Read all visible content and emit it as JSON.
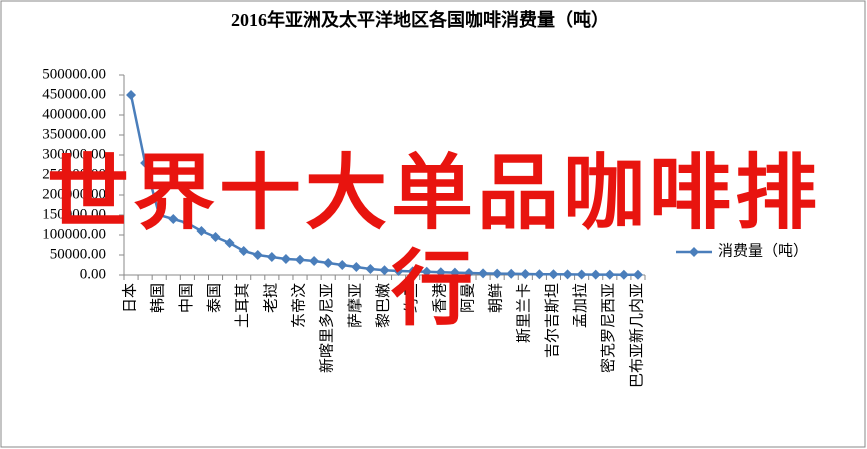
{
  "chart_data": {
    "type": "line",
    "title": "2016年亚洲及太平洋地区各国咖啡消费量（吨）",
    "annotation": "世界十大单品咖啡排行",
    "categories": [
      "日本",
      null,
      "韩国",
      null,
      "中国",
      null,
      "泰国",
      null,
      "土耳其",
      null,
      "老挝",
      null,
      "东帝汶",
      null,
      "新喀里多尼亚",
      null,
      "萨摩亚",
      null,
      "黎巴嫩",
      null,
      "约旦",
      null,
      "香港",
      null,
      "阿曼",
      null,
      "朝鲜",
      null,
      "斯里兰卡",
      null,
      "吉尔吉斯坦",
      null,
      "孟加拉",
      null,
      "密克罗尼西亚",
      null,
      "巴布亚新几内亚"
    ],
    "series": [
      {
        "name": "消费量（吨）",
        "color": "#4a7ebb",
        "values": [
          450000,
          280000,
          150000,
          140000,
          130000,
          110000,
          95000,
          80000,
          60000,
          50000,
          45000,
          40000,
          38000,
          35000,
          30000,
          25000,
          20000,
          15000,
          12000,
          10000,
          9000,
          8000,
          7000,
          6000,
          5000,
          4000,
          3500,
          3000,
          2500,
          2000,
          1800,
          1500,
          1200,
          1000,
          800,
          600,
          500
        ]
      }
    ],
    "ylim": [
      0,
      500000
    ],
    "yticks": [
      {
        "value": 0,
        "label": "0.00"
      },
      {
        "value": 50000,
        "label": "50000.00"
      },
      {
        "value": 100000,
        "label": "100000.00"
      },
      {
        "value": 150000,
        "label": "150000.00"
      },
      {
        "value": 200000,
        "label": "200000.00"
      },
      {
        "value": 250000,
        "label": "250000.00"
      },
      {
        "value": 300000,
        "label": "300000.00"
      },
      {
        "value": 350000,
        "label": "350000.00"
      },
      {
        "value": 400000,
        "label": "400000.00"
      },
      {
        "value": 450000,
        "label": "450000.00"
      },
      {
        "value": 500000,
        "label": "500000.00"
      }
    ],
    "legend": "right"
  }
}
